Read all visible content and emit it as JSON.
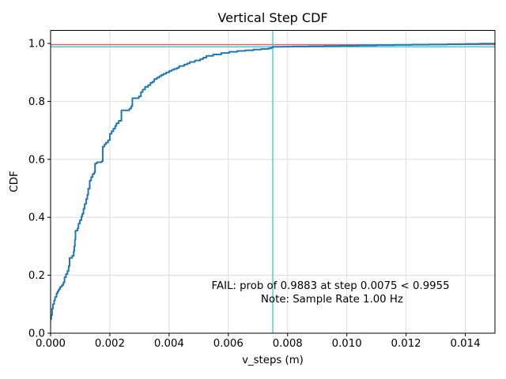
{
  "figure": {
    "title": "Vertical Step CDF",
    "xlabel": "v_steps (m)",
    "ylabel": "CDF"
  },
  "annotations": {
    "fail_text": "FAIL: prob of 0.9883 at step 0.0075 < 0.9955",
    "fail_color": "#ff0000",
    "note_text": "Note: Sample Rate 1.00 Hz",
    "note_color": "#000000"
  },
  "chart_data": {
    "type": "line",
    "title": "Vertical Step CDF",
    "xlabel": "v_steps (m)",
    "ylabel": "CDF",
    "xlim": [
      0,
      0.015
    ],
    "ylim": [
      0,
      1.045
    ],
    "grid": true,
    "legend": false,
    "step_style": "post",
    "xticks": [
      0.0,
      0.002,
      0.004,
      0.006,
      0.008,
      0.01,
      0.012,
      0.014
    ],
    "xtick_labels": [
      "0.000",
      "0.002",
      "0.004",
      "0.006",
      "0.008",
      "0.010",
      "0.012",
      "0.014"
    ],
    "yticks": [
      0.0,
      0.2,
      0.4,
      0.6,
      0.8,
      1.0
    ],
    "ytick_labels": [
      "0.0",
      "0.2",
      "0.4",
      "0.6",
      "0.8",
      "1.0"
    ],
    "series": [
      {
        "name": "vertical-step-cdf",
        "color": "#1f77b4",
        "line_width": 2,
        "points": [
          [
            0.0,
            0.048
          ],
          [
            2e-05,
            0.062
          ],
          [
            5e-05,
            0.085
          ],
          [
            8e-05,
            0.1
          ],
          [
            0.00012,
            0.113
          ],
          [
            0.00015,
            0.125
          ],
          [
            0.0002,
            0.138
          ],
          [
            0.00024,
            0.145
          ],
          [
            0.00028,
            0.152
          ],
          [
            0.00032,
            0.16
          ],
          [
            0.00038,
            0.166
          ],
          [
            0.00043,
            0.175
          ],
          [
            0.00047,
            0.193
          ],
          [
            0.00052,
            0.204
          ],
          [
            0.00057,
            0.215
          ],
          [
            0.00061,
            0.232
          ],
          [
            0.00064,
            0.26
          ],
          [
            0.00073,
            0.267
          ],
          [
            0.00078,
            0.283
          ],
          [
            0.0008,
            0.3
          ],
          [
            0.00082,
            0.322
          ],
          [
            0.00084,
            0.354
          ],
          [
            0.00091,
            0.362
          ],
          [
            0.00094,
            0.378
          ],
          [
            0.00099,
            0.39
          ],
          [
            0.00104,
            0.403
          ],
          [
            0.00107,
            0.412
          ],
          [
            0.00111,
            0.43
          ],
          [
            0.00115,
            0.446
          ],
          [
            0.0012,
            0.463
          ],
          [
            0.00124,
            0.478
          ],
          [
            0.00127,
            0.499
          ],
          [
            0.00132,
            0.527
          ],
          [
            0.00137,
            0.539
          ],
          [
            0.00142,
            0.549
          ],
          [
            0.00147,
            0.554
          ],
          [
            0.0015,
            0.585
          ],
          [
            0.00156,
            0.59
          ],
          [
            0.00172,
            0.593
          ],
          [
            0.00176,
            0.644
          ],
          [
            0.00182,
            0.652
          ],
          [
            0.00187,
            0.658
          ],
          [
            0.00194,
            0.666
          ],
          [
            0.002,
            0.688
          ],
          [
            0.00206,
            0.697
          ],
          [
            0.00212,
            0.706
          ],
          [
            0.00218,
            0.715
          ],
          [
            0.00222,
            0.724
          ],
          [
            0.0023,
            0.733
          ],
          [
            0.00239,
            0.769
          ],
          [
            0.00266,
            0.775
          ],
          [
            0.00272,
            0.783
          ],
          [
            0.00276,
            0.811
          ],
          [
            0.00298,
            0.817
          ],
          [
            0.00305,
            0.832
          ],
          [
            0.00311,
            0.841
          ],
          [
            0.00319,
            0.85
          ],
          [
            0.00329,
            0.856
          ],
          [
            0.00337,
            0.864
          ],
          [
            0.00344,
            0.868
          ],
          [
            0.0035,
            0.877
          ],
          [
            0.00359,
            0.882
          ],
          [
            0.00367,
            0.887
          ],
          [
            0.00374,
            0.891
          ],
          [
            0.00381,
            0.895
          ],
          [
            0.0039,
            0.9
          ],
          [
            0.004,
            0.905
          ],
          [
            0.00409,
            0.909
          ],
          [
            0.00417,
            0.912
          ],
          [
            0.00427,
            0.916
          ],
          [
            0.00434,
            0.922
          ],
          [
            0.00451,
            0.927
          ],
          [
            0.00461,
            0.931
          ],
          [
            0.0047,
            0.936
          ],
          [
            0.00487,
            0.941
          ],
          [
            0.00505,
            0.946
          ],
          [
            0.00515,
            0.951
          ],
          [
            0.00526,
            0.957
          ],
          [
            0.00549,
            0.962
          ],
          [
            0.00576,
            0.967
          ],
          [
            0.00603,
            0.971
          ],
          [
            0.0063,
            0.974
          ],
          [
            0.00657,
            0.976
          ],
          [
            0.00684,
            0.979
          ],
          [
            0.00711,
            0.981
          ],
          [
            0.00736,
            0.983
          ],
          [
            0.00745,
            0.9855
          ],
          [
            0.0075,
            0.9883
          ],
          [
            0.00785,
            0.9888
          ],
          [
            0.00817,
            0.9893
          ],
          [
            0.0087,
            0.99
          ],
          [
            0.00924,
            0.991
          ],
          [
            0.00977,
            0.9921
          ],
          [
            0.0104,
            0.9931
          ],
          [
            0.011,
            0.9941
          ],
          [
            0.0116,
            0.9948
          ],
          [
            0.0122,
            0.9955
          ],
          [
            0.0128,
            0.9963
          ],
          [
            0.0134,
            0.9972
          ],
          [
            0.014,
            0.9982
          ],
          [
            0.0145,
            0.9992
          ],
          [
            0.015,
            1.0
          ]
        ]
      }
    ],
    "reference_lines": {
      "threshold_hline": {
        "y": 0.9955,
        "color": "#f15555",
        "width": 1.3
      },
      "prob_hline": {
        "y": 0.9883,
        "color": "#3cc6cc",
        "width": 1.3
      },
      "step_vline": {
        "x": 0.0075,
        "color": "#3cc6cc",
        "width": 1.3
      }
    },
    "annotations": [
      {
        "text": "FAIL: prob of 0.9883 at step 0.0075 < 0.9955",
        "color": "#ff0000",
        "x": 0.00945,
        "y": 0.152
      },
      {
        "text": "Note: Sample Rate 1.00 Hz",
        "color": "#000000",
        "x": 0.0095,
        "y": 0.106
      }
    ],
    "style": {
      "grid_color": "#dcdcdc",
      "spine_color": "#000000",
      "background": "#ffffff"
    }
  }
}
